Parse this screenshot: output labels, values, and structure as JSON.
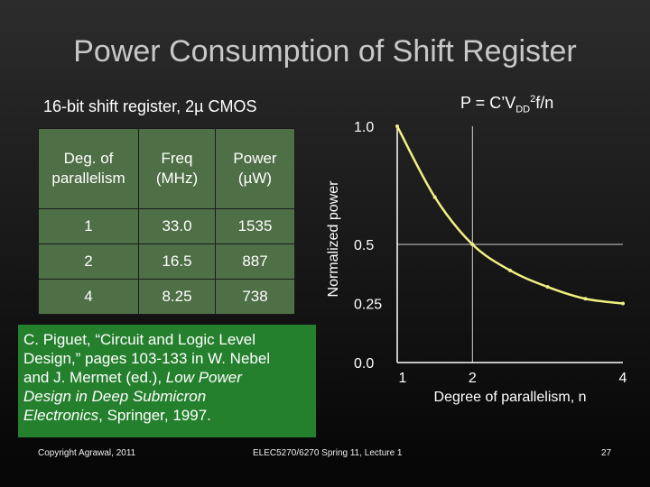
{
  "slide": {
    "title": "Power Consumption of Shift Register",
    "subtitle": "16-bit shift register, 2µ CMOS",
    "formula": {
      "base": "P = C’V",
      "sub": "DD",
      "sup": "2",
      "tail": "f/n"
    }
  },
  "table": {
    "headers": [
      [
        "Deg. of",
        "parallelism"
      ],
      [
        "Freq",
        "(MHz)"
      ],
      [
        "Power",
        "(µW)"
      ]
    ],
    "rows": [
      [
        "1",
        "33.0",
        "1535"
      ],
      [
        "2",
        "16.5",
        "887"
      ],
      [
        "4",
        "8.25",
        "738"
      ]
    ]
  },
  "reference": {
    "lines": [
      "C. Piguet, “Circuit and Logic Level",
      "Design,” pages 103-133 in W. Nebel",
      "and J. Mermet (ed.), ",
      "Low Power",
      "Design in Deep Submicron",
      "Electronics",
      ", Springer, 1997."
    ]
  },
  "chart_data": {
    "type": "line",
    "ylabel": "Normalized power",
    "xlabel": "Degree of parallelism, n",
    "x_ticks": [
      "1",
      "2",
      "4"
    ],
    "y_ticks": [
      "1.0",
      "0.5",
      "0.25",
      "0.0"
    ],
    "x_values": [
      1,
      2,
      4
    ],
    "y_tick_values": [
      1.0,
      0.5,
      0.25,
      0.0
    ],
    "xlim": [
      1,
      4
    ],
    "ylim": [
      0,
      1
    ],
    "series": [
      {
        "x": [
          1,
          1.5,
          2,
          2.5,
          3,
          3.5,
          4
        ],
        "y": [
          1.0,
          0.7,
          0.5,
          0.39,
          0.32,
          0.27,
          0.25
        ]
      }
    ],
    "line_color": "#f0f082",
    "axis_color": "#ffffff"
  },
  "footer": {
    "left": "Copyright Agrawal, 2011",
    "center": "ELEC5270/6270 Spring 11, Lecture 1",
    "right": "27"
  }
}
